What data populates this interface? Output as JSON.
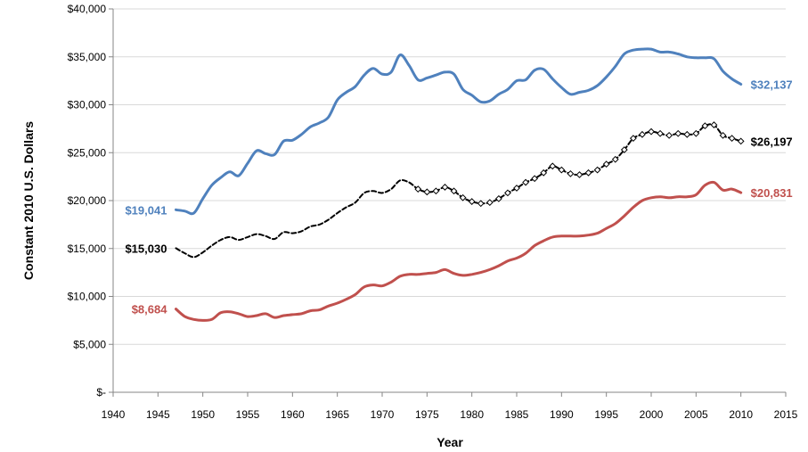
{
  "chart_data": {
    "type": "line",
    "title": "",
    "xlabel": "Year",
    "ylabel": "Constant 2010 U.S. Dollars",
    "xlim": [
      1940,
      2015
    ],
    "ylim": [
      0,
      40000
    ],
    "x_ticks": [
      "1940",
      "1945",
      "1950",
      "1955",
      "1960",
      "1965",
      "1970",
      "1975",
      "1980",
      "1985",
      "1990",
      "1995",
      "2000",
      "2005",
      "2010",
      "2015"
    ],
    "y_ticks": [
      "$-",
      "$5,000",
      "$10,000",
      "$15,000",
      "$20,000",
      "$25,000",
      "$30,000",
      "$35,000",
      "$40,000"
    ],
    "grid": "horizontal",
    "legend": "none",
    "x": [
      1947,
      1948,
      1949,
      1950,
      1951,
      1952,
      1953,
      1954,
      1955,
      1956,
      1957,
      1958,
      1959,
      1960,
      1961,
      1962,
      1963,
      1964,
      1965,
      1966,
      1967,
      1968,
      1969,
      1970,
      1971,
      1972,
      1973,
      1974,
      1975,
      1976,
      1977,
      1978,
      1979,
      1980,
      1981,
      1982,
      1983,
      1984,
      1985,
      1986,
      1987,
      1988,
      1989,
      1990,
      1991,
      1992,
      1993,
      1994,
      1995,
      1996,
      1997,
      1998,
      1999,
      2000,
      2001,
      2002,
      2003,
      2004,
      2005,
      2006,
      2007,
      2008,
      2009,
      2010
    ],
    "series": [
      {
        "color": "#4F81BD",
        "style": "solid",
        "start_label": "$19,041",
        "end_label": "$32,137",
        "values": [
          19041,
          18900,
          18700,
          20200,
          21600,
          22400,
          23000,
          22600,
          23900,
          25200,
          24900,
          24800,
          26200,
          26300,
          26900,
          27700,
          28100,
          28700,
          30500,
          31300,
          31900,
          33100,
          33800,
          33200,
          33400,
          35200,
          34100,
          32600,
          32800,
          33100,
          33400,
          33200,
          31600,
          31000,
          30300,
          30400,
          31100,
          31600,
          32500,
          32600,
          33600,
          33700,
          32700,
          31800,
          31100,
          31300,
          31500,
          32000,
          32900,
          34000,
          35300,
          35700,
          35800,
          35800,
          35500,
          35500,
          35300,
          35000,
          34900,
          34900,
          34800,
          33500,
          32700,
          32137
        ]
      },
      {
        "color": "#000000",
        "style": "dashed",
        "start_label": "$15,030",
        "end_label": "$26,197",
        "values": [
          15030,
          14500,
          14100,
          14600,
          15300,
          15900,
          16200,
          15900,
          16200,
          16500,
          16300,
          16000,
          16700,
          16600,
          16800,
          17300,
          17500,
          18000,
          18700,
          19300,
          19800,
          20800,
          21000,
          20800,
          21200,
          22100,
          21900,
          21200,
          20900,
          21000,
          21400,
          21000,
          20300,
          19900,
          19700,
          19800,
          20200,
          20800,
          21300,
          21900,
          22300,
          22900,
          23600,
          23200,
          22800,
          22700,
          22900,
          23200,
          23800,
          24300,
          25300,
          26500,
          26900,
          27200,
          27000,
          26800,
          27000,
          26900,
          27000,
          27800,
          27900,
          26800,
          26500,
          26197
        ]
      },
      {
        "color": "#C0504D",
        "style": "solid",
        "start_label": "$8,684",
        "end_label": "$20,831",
        "values": [
          8684,
          7900,
          7600,
          7500,
          7600,
          8300,
          8400,
          8200,
          7900,
          8000,
          8200,
          7800,
          8000,
          8100,
          8200,
          8500,
          8600,
          9000,
          9300,
          9700,
          10200,
          11000,
          11200,
          11100,
          11500,
          12100,
          12300,
          12300,
          12400,
          12500,
          12800,
          12400,
          12200,
          12300,
          12500,
          12800,
          13200,
          13700,
          14000,
          14500,
          15300,
          15800,
          16200,
          16300,
          16300,
          16300,
          16400,
          16600,
          17100,
          17600,
          18400,
          19300,
          20000,
          20300,
          20400,
          20300,
          20400,
          20400,
          20600,
          21600,
          21900,
          21100,
          21200,
          20831
        ]
      }
    ]
  }
}
